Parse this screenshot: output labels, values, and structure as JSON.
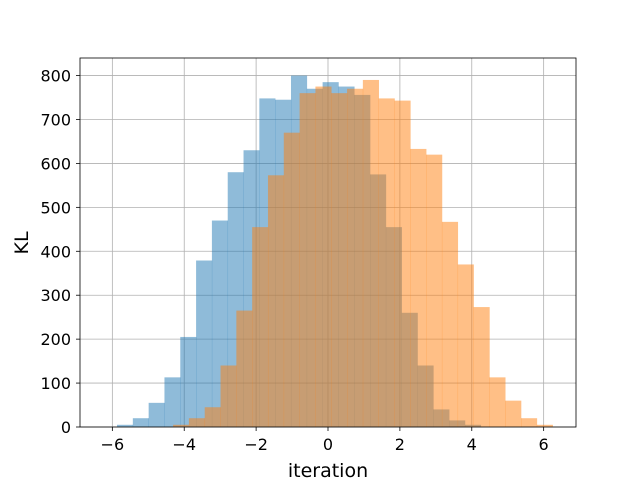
{
  "chart_data": {
    "type": "bar",
    "subtype": "overlapping-histogram",
    "title": "",
    "xlabel": "iteration",
    "ylabel": "KL",
    "xlim": [
      -6.9,
      6.9
    ],
    "ylim": [
      0,
      840
    ],
    "xticks": [
      -6,
      -4,
      -2,
      0,
      2,
      4,
      6
    ],
    "yticks": [
      0,
      100,
      200,
      300,
      400,
      500,
      600,
      700,
      800
    ],
    "grid": true,
    "legend": "none",
    "series": [
      {
        "color": "#1f77b4",
        "alpha": 0.5,
        "bin_edges": [
          -5.87,
          -5.43,
          -4.99,
          -4.55,
          -4.11,
          -3.67,
          -3.23,
          -2.79,
          -2.35,
          -1.91,
          -1.47,
          -1.03,
          -0.59,
          -0.15,
          0.29,
          0.73,
          1.17,
          1.61,
          2.05,
          2.49,
          2.93,
          3.37,
          3.81,
          4.25
        ],
        "counts": [
          5,
          20,
          55,
          113,
          205,
          379,
          470,
          580,
          630,
          748,
          745,
          800,
          770,
          785,
          775,
          756,
          575,
          455,
          260,
          140,
          40,
          15,
          5
        ]
      },
      {
        "color": "#ff7f0e",
        "alpha": 0.5,
        "bin_edges": [
          -4.31,
          -3.87,
          -3.43,
          -2.99,
          -2.55,
          -2.11,
          -1.67,
          -1.23,
          -0.79,
          -0.35,
          0.09,
          0.53,
          0.97,
          1.41,
          1.85,
          2.29,
          2.73,
          3.17,
          3.61,
          4.05,
          4.49,
          4.93,
          5.37,
          5.81,
          6.25
        ],
        "counts": [
          5,
          20,
          45,
          140,
          265,
          455,
          573,
          670,
          760,
          775,
          760,
          770,
          790,
          748,
          743,
          633,
          620,
          467,
          370,
          273,
          113,
          60,
          20,
          5
        ]
      }
    ]
  }
}
